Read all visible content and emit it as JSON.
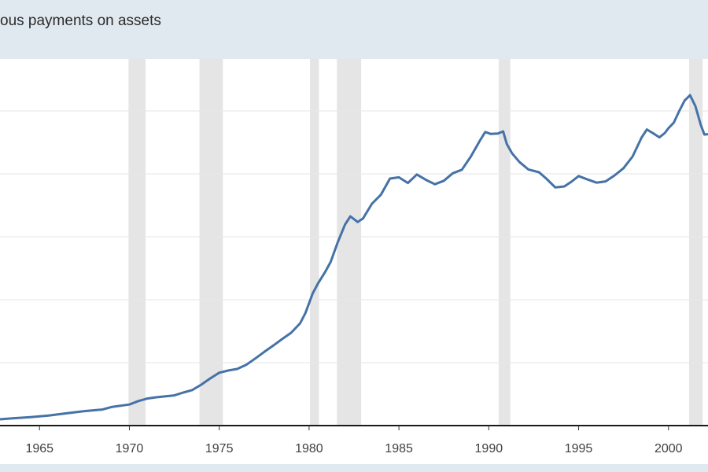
{
  "chart_data": {
    "type": "line",
    "title": "ous payments on assets",
    "xlabel": "",
    "ylabel": "",
    "x_range": [
      1962.8,
      2002.2
    ],
    "x_ticks": [
      "1965",
      "1970",
      "1975",
      "1980",
      "1985",
      "1990",
      "1995",
      "2000"
    ],
    "x_tick_values": [
      1965,
      1970,
      1975,
      1980,
      1985,
      1990,
      1995,
      2000
    ],
    "y_range": [
      0,
      100
    ],
    "grid": true,
    "recession_shading": [
      [
        1969.95,
        1970.9
      ],
      [
        1973.9,
        1975.2
      ],
      [
        1980.05,
        1980.55
      ],
      [
        1981.55,
        1982.9
      ],
      [
        1990.55,
        1991.2
      ],
      [
        2001.15,
        2001.9
      ]
    ],
    "series": [
      {
        "color": "#4572a7",
        "points": [
          [
            1962.8,
            2.0
          ],
          [
            1963.5,
            2.3
          ],
          [
            1964.5,
            2.7
          ],
          [
            1965.5,
            3.2
          ],
          [
            1966.5,
            3.9
          ],
          [
            1967.5,
            4.6
          ],
          [
            1968.5,
            5.1
          ],
          [
            1969.0,
            5.9
          ],
          [
            1970.0,
            6.7
          ],
          [
            1970.5,
            7.8
          ],
          [
            1971.0,
            8.6
          ],
          [
            1971.5,
            9.0
          ],
          [
            1972.5,
            9.6
          ],
          [
            1973.0,
            10.5
          ],
          [
            1973.5,
            11.3
          ],
          [
            1974.0,
            13.0
          ],
          [
            1974.5,
            15.0
          ],
          [
            1975.0,
            16.8
          ],
          [
            1975.5,
            17.5
          ],
          [
            1976.0,
            18.0
          ],
          [
            1976.5,
            19.3
          ],
          [
            1977.0,
            21.3
          ],
          [
            1977.5,
            23.4
          ],
          [
            1978.0,
            25.4
          ],
          [
            1978.5,
            27.5
          ],
          [
            1979.0,
            29.5
          ],
          [
            1979.5,
            32.5
          ],
          [
            1979.8,
            35.8
          ],
          [
            1980.2,
            42.0
          ],
          [
            1980.5,
            45.2
          ],
          [
            1980.9,
            48.9
          ],
          [
            1981.2,
            52.0
          ],
          [
            1981.6,
            58.3
          ],
          [
            1982.0,
            63.9
          ],
          [
            1982.3,
            66.5
          ],
          [
            1982.7,
            64.7
          ],
          [
            1983.0,
            65.8
          ],
          [
            1983.5,
            70.5
          ],
          [
            1984.0,
            73.4
          ],
          [
            1984.5,
            78.5
          ],
          [
            1985.0,
            78.9
          ],
          [
            1985.5,
            77.1
          ],
          [
            1986.0,
            79.8
          ],
          [
            1986.5,
            78.1
          ],
          [
            1987.0,
            76.7
          ],
          [
            1987.5,
            77.8
          ],
          [
            1988.0,
            80.2
          ],
          [
            1988.5,
            81.3
          ],
          [
            1989.0,
            85.5
          ],
          [
            1989.5,
            90.5
          ],
          [
            1989.8,
            93.3
          ],
          [
            1990.1,
            92.7
          ],
          [
            1990.5,
            92.8
          ],
          [
            1990.8,
            93.5
          ],
          [
            1991.0,
            89.5
          ],
          [
            1991.3,
            86.5
          ],
          [
            1991.7,
            83.8
          ],
          [
            1992.2,
            81.4
          ],
          [
            1992.8,
            80.5
          ],
          [
            1993.2,
            78.5
          ],
          [
            1993.7,
            75.7
          ],
          [
            1994.2,
            76.0
          ],
          [
            1994.6,
            77.5
          ],
          [
            1995.0,
            79.3
          ],
          [
            1995.5,
            78.2
          ],
          [
            1996.0,
            77.2
          ],
          [
            1996.5,
            77.6
          ],
          [
            1997.0,
            79.5
          ],
          [
            1997.5,
            81.8
          ],
          [
            1998.0,
            85.5
          ],
          [
            1998.5,
            91.5
          ],
          [
            1998.8,
            94.1
          ],
          [
            1999.2,
            92.7
          ],
          [
            1999.5,
            91.6
          ],
          [
            1999.8,
            93.0
          ],
          [
            2000.0,
            94.5
          ],
          [
            2000.3,
            96.3
          ],
          [
            2000.6,
            100.0
          ],
          [
            2000.9,
            103.3
          ],
          [
            2001.2,
            105.0
          ],
          [
            2001.5,
            101.5
          ],
          [
            2001.8,
            95.5
          ],
          [
            2002.0,
            92.5
          ],
          [
            2002.2,
            92.6
          ]
        ]
      }
    ]
  }
}
